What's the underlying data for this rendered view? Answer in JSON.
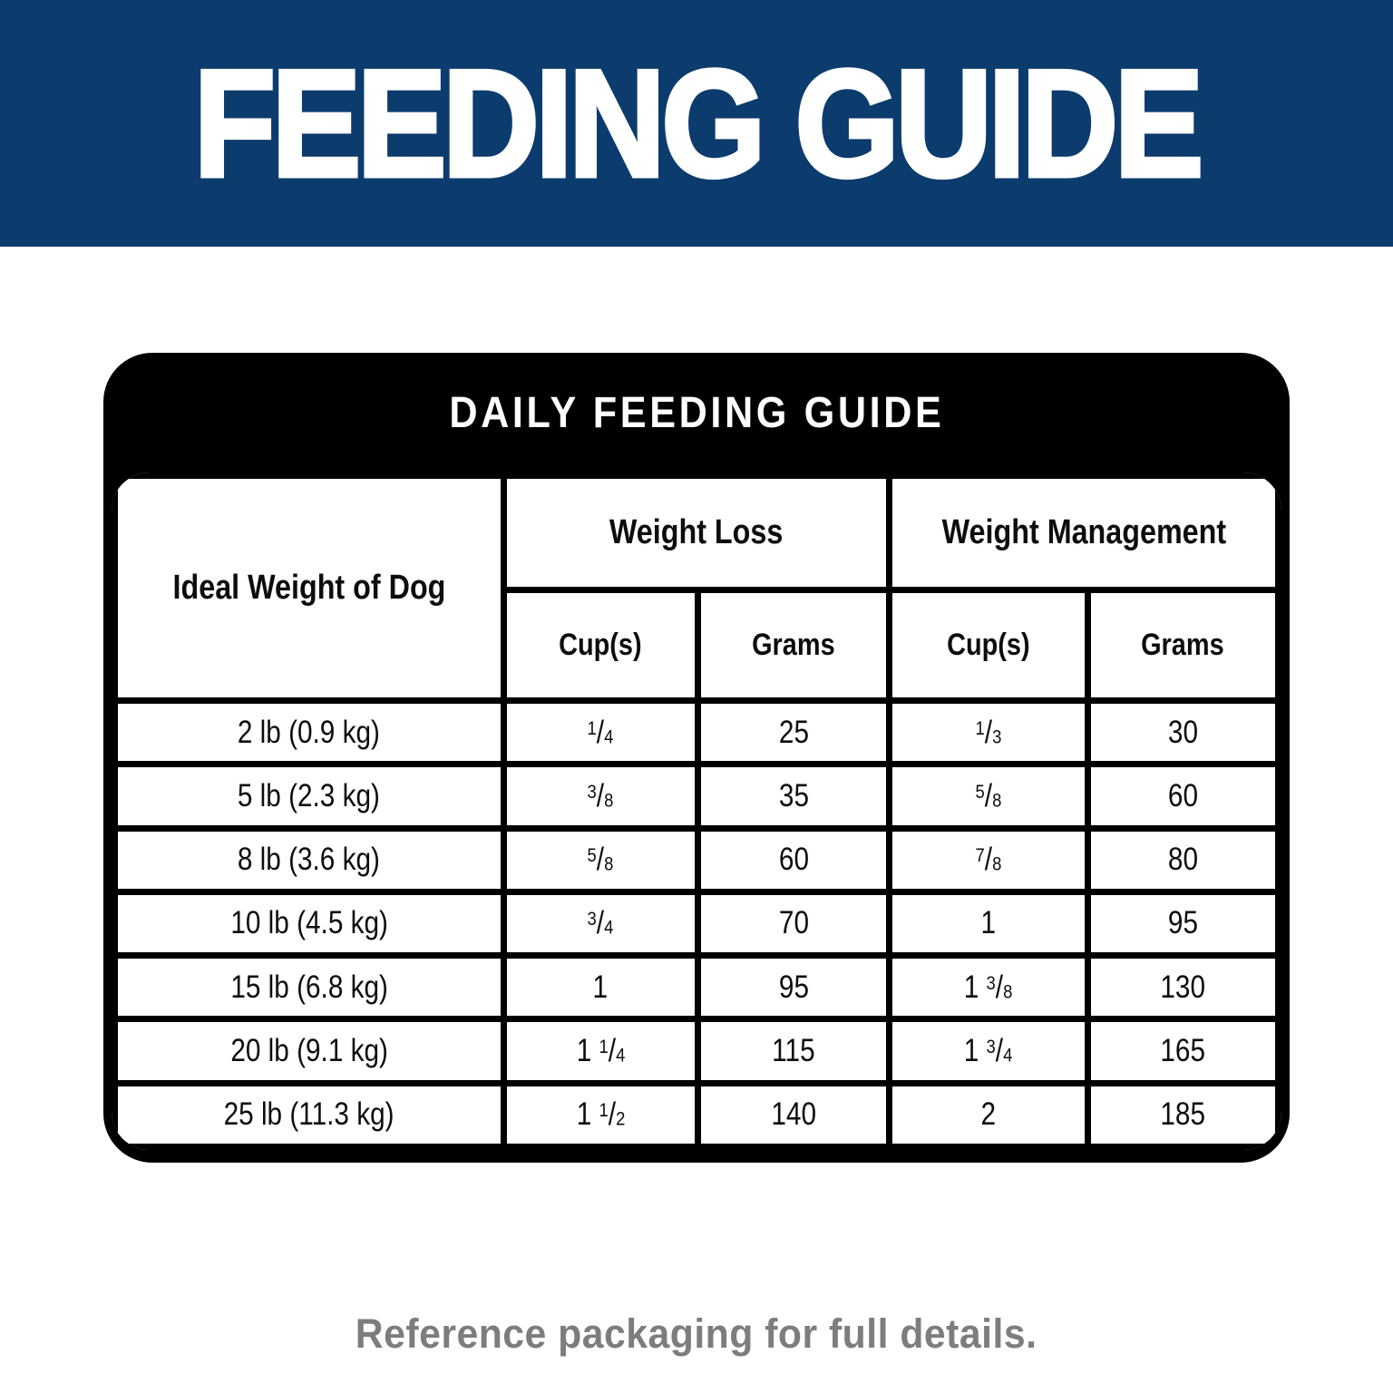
{
  "banner": {
    "title": "FEEDING GUIDE",
    "bg_color": "#0c3b6d",
    "text_color": "#ffffff"
  },
  "card": {
    "title": "DAILY FEEDING GUIDE",
    "bg_color": "#000000",
    "table": {
      "weight_header": "Ideal Weight of Dog",
      "group_headers": [
        "Weight Loss",
        "Weight Management"
      ],
      "sub_headers": [
        "Cup(s)",
        "Grams",
        "Cup(s)",
        "Grams"
      ],
      "rows": [
        {
          "weight": "2 lb (0.9 kg)",
          "wl_cups": "1/4",
          "wl_grams": "25",
          "wm_cups": "1/3",
          "wm_grams": "30"
        },
        {
          "weight": "5 lb (2.3 kg)",
          "wl_cups": "3/8",
          "wl_grams": "35",
          "wm_cups": "5/8",
          "wm_grams": "60"
        },
        {
          "weight": "8 lb (3.6 kg)",
          "wl_cups": "5/8",
          "wl_grams": "60",
          "wm_cups": "7/8",
          "wm_grams": "80"
        },
        {
          "weight": "10 lb (4.5 kg)",
          "wl_cups": "3/4",
          "wl_grams": "70",
          "wm_cups": "1",
          "wm_grams": "95"
        },
        {
          "weight": "15 lb (6.8 kg)",
          "wl_cups": "1",
          "wl_grams": "95",
          "wm_cups": "1 3/8",
          "wm_grams": "130"
        },
        {
          "weight": "20 lb (9.1 kg)",
          "wl_cups": "1 1/4",
          "wl_grams": "115",
          "wm_cups": "1 3/4",
          "wm_grams": "165"
        },
        {
          "weight": "25 lb (11.3 kg)",
          "wl_cups": "1 1/2",
          "wl_grams": "140",
          "wm_cups": "2",
          "wm_grams": "185"
        }
      ]
    }
  },
  "footer": {
    "note": "Reference packaging for full details.",
    "text_color": "#7d7d7d"
  }
}
